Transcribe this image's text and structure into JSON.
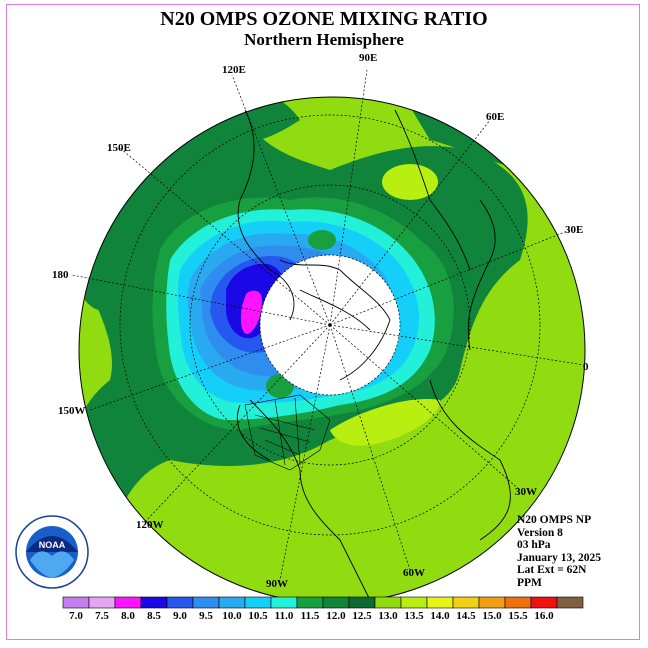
{
  "header": {
    "title": "N20 OMPS OZONE MIXING RATIO",
    "subtitle": "Northern Hemisphere"
  },
  "longitude_labels": [
    "90E",
    "60E",
    "30E",
    "0",
    "30W",
    "60W",
    "90W",
    "120W",
    "150W",
    "180",
    "150E",
    "120E"
  ],
  "info": {
    "product": "N20 OMPS NP",
    "version": "Version 8",
    "level": "03 hPa",
    "date": "January 13, 2025",
    "lat_ext": "Lat Ext = 62N",
    "units": "PPM"
  },
  "colorbar": {
    "labels": [
      "7.0",
      "7.5",
      "8.0",
      "8.5",
      "9.0",
      "9.5",
      "10.0",
      "10.5",
      "11.0",
      "11.5",
      "12.0",
      "12.5",
      "13.0",
      "13.5",
      "14.0",
      "14.5",
      "15.0",
      "15.5",
      "16.0"
    ],
    "colors": [
      "#c27ff0",
      "#e3a7f0",
      "#ff14ff",
      "#1a08e6",
      "#2658f0",
      "#2f8df0",
      "#29aaf0",
      "#14d0f8",
      "#22f0d8",
      "#18a040",
      "#10843a",
      "#0c6a30",
      "#90dc10",
      "#b8ee10",
      "#e6f418",
      "#f0d010",
      "#f0a010",
      "#f07010",
      "#f01010",
      "#806040"
    ]
  },
  "logo": {
    "text": "NOAA"
  }
}
